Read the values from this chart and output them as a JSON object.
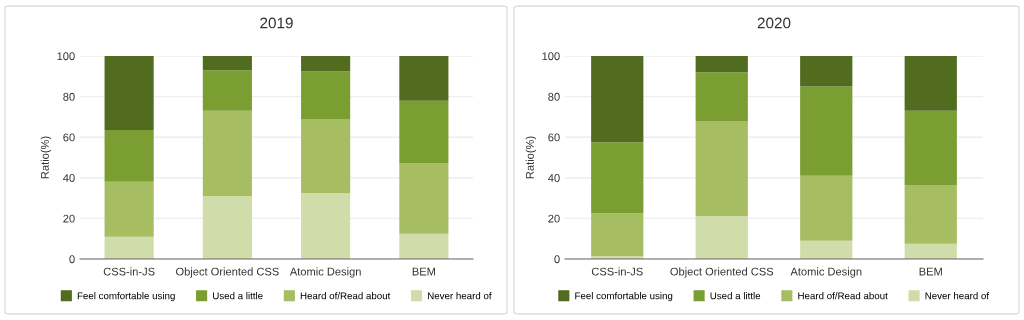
{
  "chart_data": [
    {
      "type": "bar",
      "title": "2019",
      "ylabel": "Ratio(%)",
      "stacked": true,
      "categories": [
        "CSS-in-JS",
        "Object Oriented CSS",
        "Atomic Design",
        "BEM"
      ],
      "ylim": [
        0,
        100
      ],
      "yticks": [
        0,
        20,
        40,
        60,
        80,
        100
      ],
      "grid": "y",
      "legend": "bottom",
      "series": [
        {
          "name": "Never heard of",
          "color": "#d0dcaa",
          "values": [
            11,
            31,
            32.5,
            12.5
          ]
        },
        {
          "name": "Heard of/Read about",
          "color": "#a6bd62",
          "values": [
            27,
            42,
            36.5,
            34.5
          ]
        },
        {
          "name": "Used a little",
          "color": "#7a9e31",
          "values": [
            25.5,
            20,
            23.5,
            31
          ]
        },
        {
          "name": "Feel comfortable using",
          "color": "#516b1f",
          "values": [
            36.5,
            7,
            7.5,
            22
          ]
        }
      ]
    },
    {
      "type": "bar",
      "title": "2020",
      "ylabel": "Ratio(%)",
      "stacked": true,
      "categories": [
        "CSS-in-JS",
        "Object Oriented CSS",
        "Atomic Design",
        "BEM"
      ],
      "ylim": [
        0,
        100
      ],
      "yticks": [
        0,
        20,
        40,
        60,
        80,
        100
      ],
      "grid": "y",
      "legend": "bottom",
      "series": [
        {
          "name": "Never heard of",
          "color": "#d0dcaa",
          "values": [
            1.5,
            21,
            9,
            7.5
          ]
        },
        {
          "name": "Heard of/Read about",
          "color": "#a6bd62",
          "values": [
            21,
            47,
            32,
            29
          ]
        },
        {
          "name": "Used a little",
          "color": "#7a9e31",
          "values": [
            35,
            24,
            44,
            36.5
          ]
        },
        {
          "name": "Feel comfortable using",
          "color": "#516b1f",
          "values": [
            42.5,
            8,
            15,
            27
          ]
        }
      ]
    }
  ]
}
